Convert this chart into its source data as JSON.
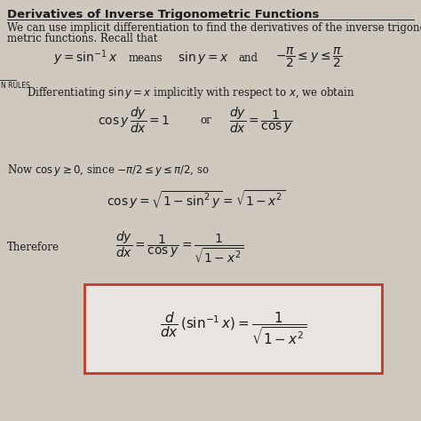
{
  "title": "Derivatives of Inverse Trigonometric Functions",
  "bg_color": "#cfc8bf",
  "text_color": "#1a1a1a",
  "box_color": "#c0392b",
  "sidebar_label": "N RULES",
  "box_formula": "$\\dfrac{d}{dx}\\left(\\sin^{-1}x\\right) = \\dfrac{1}{\\sqrt{1 - x^2}}$"
}
